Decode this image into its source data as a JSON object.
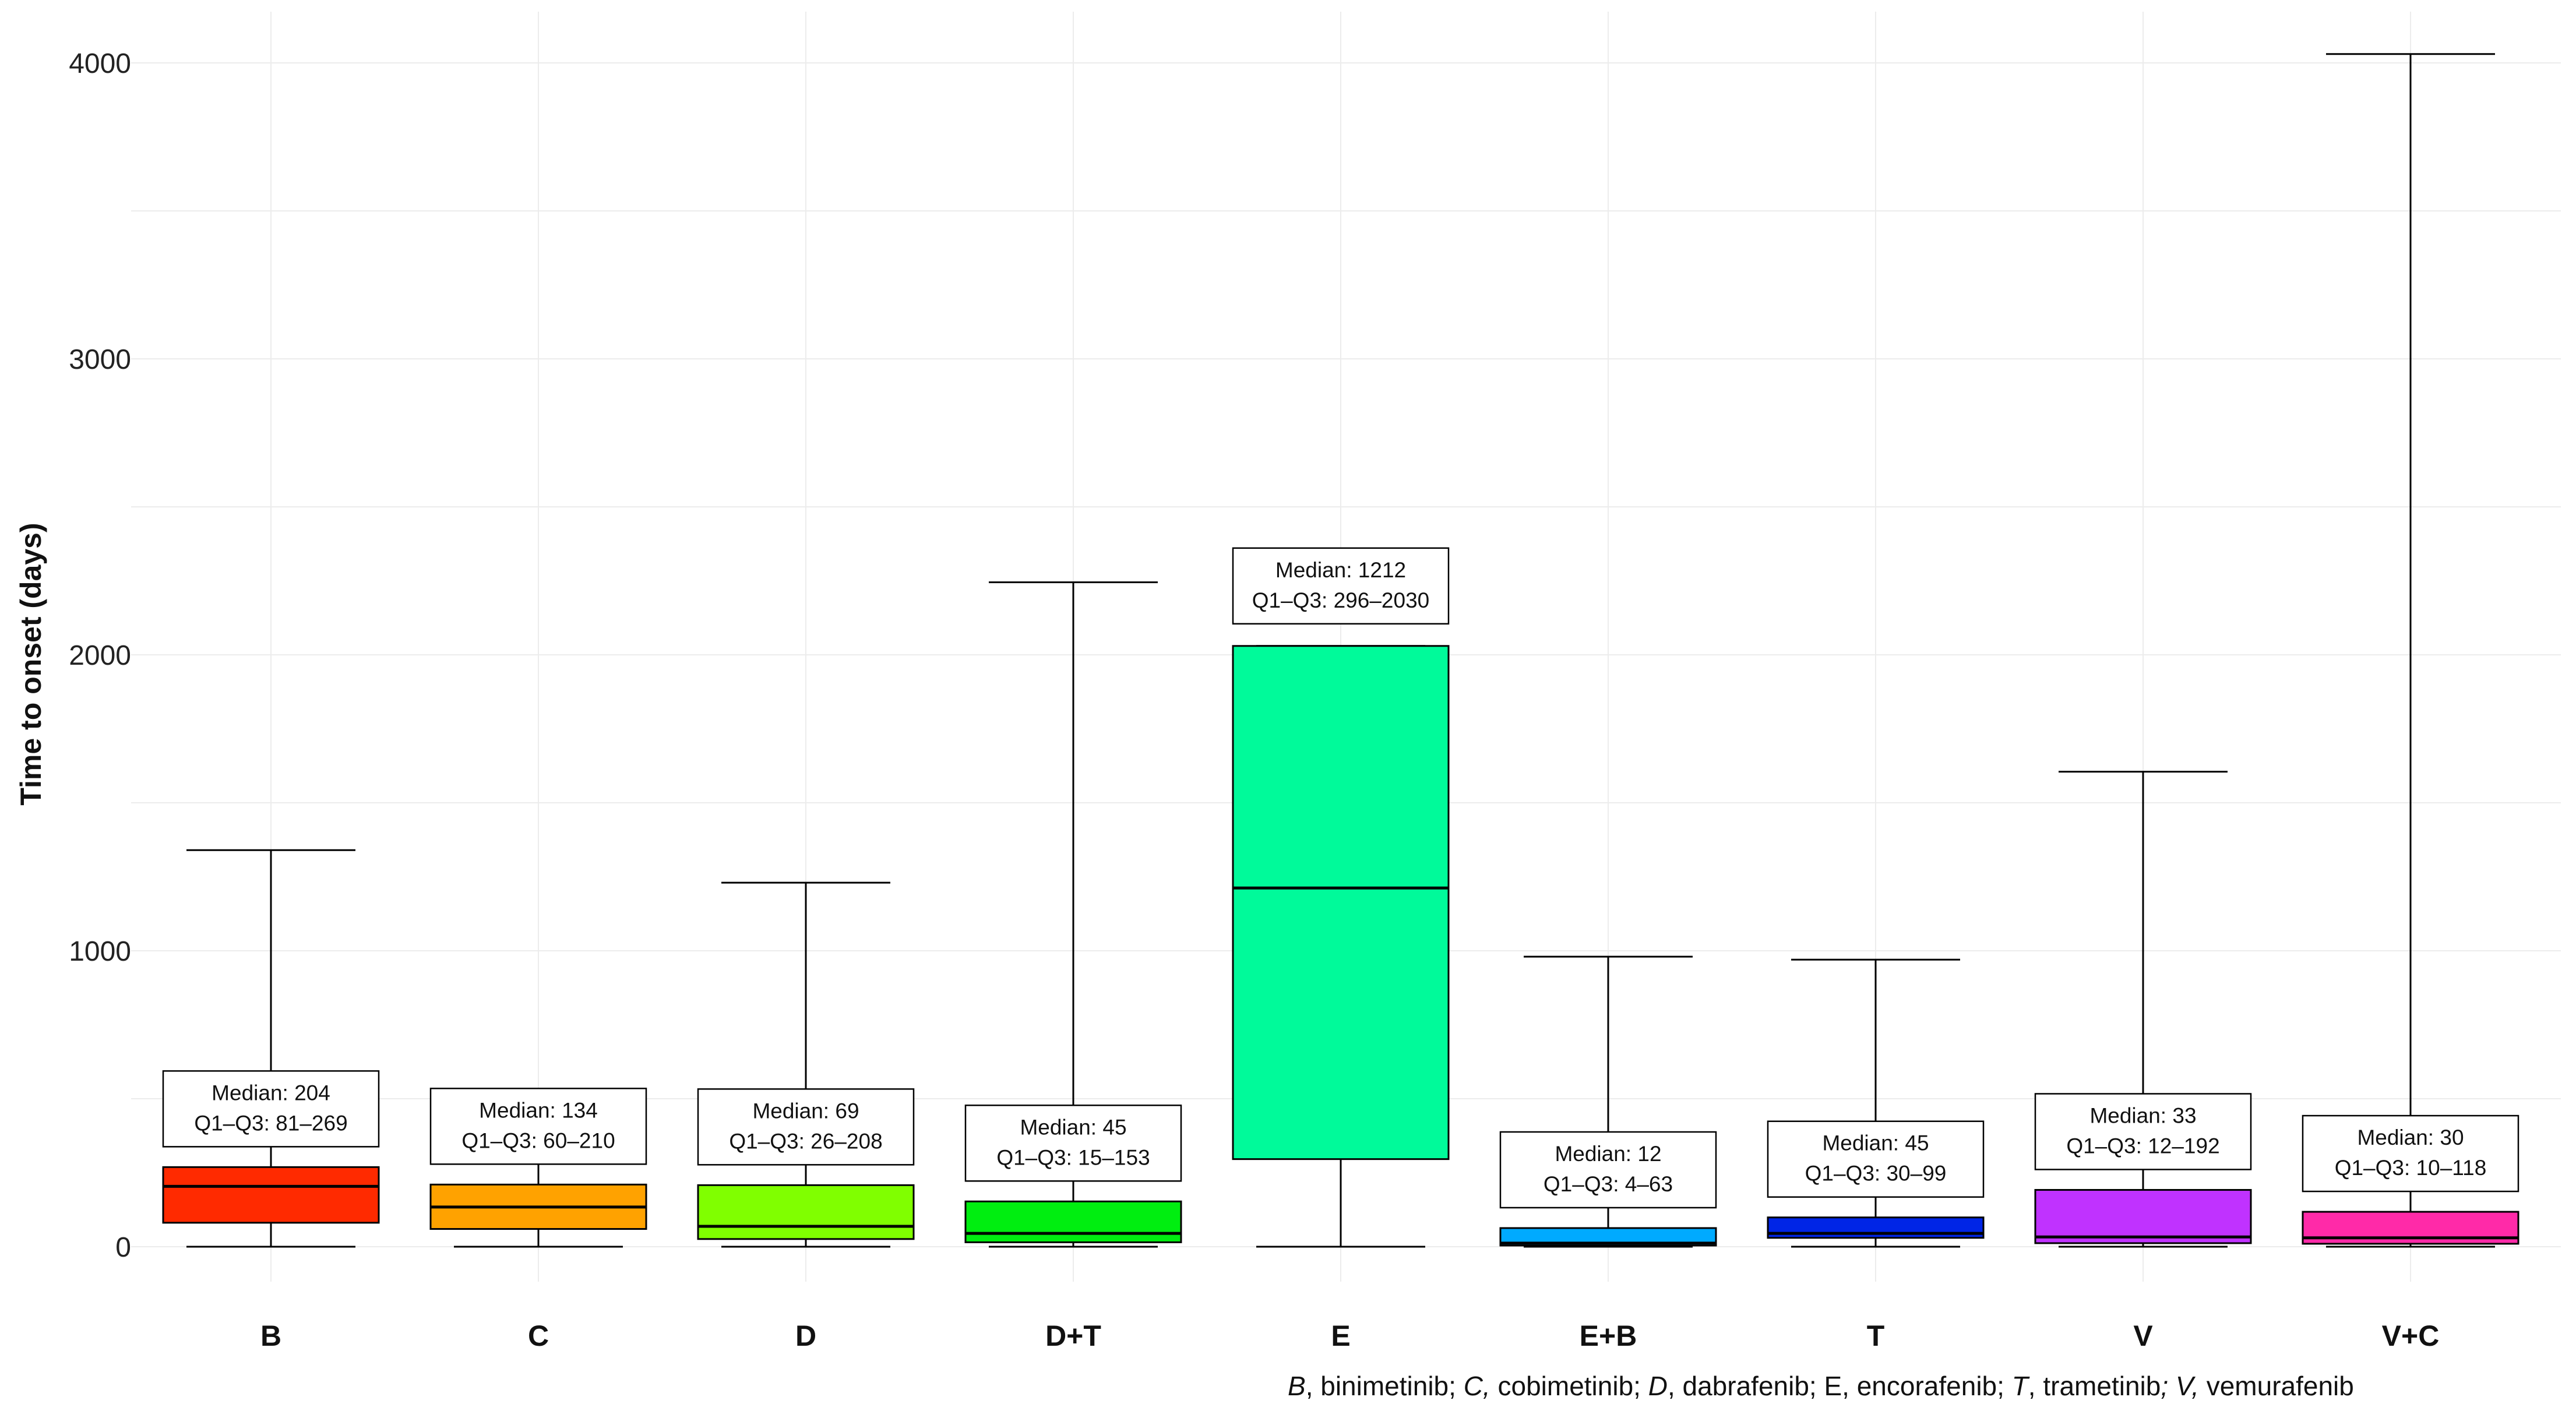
{
  "chart_data": {
    "type": "boxplot",
    "ylabel": "Time to onset (days)",
    "xlabel": "",
    "ylim": [
      -150,
      4100
    ],
    "yticks": [
      0,
      1000,
      2000,
      3000,
      4000
    ],
    "grid": true,
    "series": [
      {
        "name": "B",
        "color": "#ff2a00",
        "whisker_low": 0,
        "q1": 81,
        "median": 204,
        "q3": 269,
        "whisker_high": 1340,
        "label_line1": "Median: 204",
        "label_line2": "Q1–Q3: 81–269"
      },
      {
        "name": "C",
        "color": "#ffa200",
        "whisker_low": 0,
        "q1": 60,
        "median": 134,
        "q3": 210,
        "whisker_high": 525,
        "label_line1": "Median: 134",
        "label_line2": "Q1–Q3: 60–210"
      },
      {
        "name": "D",
        "color": "#80ff00",
        "whisker_low": 0,
        "q1": 26,
        "median": 69,
        "q3": 208,
        "whisker_high": 1230,
        "label_line1": "Median: 69",
        "label_line2": "Q1–Q3: 26–208"
      },
      {
        "name": "D+T",
        "color": "#00ee10",
        "whisker_low": 0,
        "q1": 15,
        "median": 45,
        "q3": 153,
        "whisker_high": 2245,
        "label_line1": "Median: 45",
        "label_line2": "Q1–Q3: 15–153"
      },
      {
        "name": "E",
        "color": "#00fa9a",
        "whisker_low": 0,
        "q1": 296,
        "median": 1212,
        "q3": 2030,
        "whisker_high": 2030,
        "label_line1": "Median: 1212",
        "label_line2": "Q1–Q3: 296–2030"
      },
      {
        "name": "E+B",
        "color": "#00aaff",
        "whisker_low": 0,
        "q1": 4,
        "median": 12,
        "q3": 63,
        "whisker_high": 980,
        "label_line1": "Median: 12",
        "label_line2": "Q1–Q3: 4–63"
      },
      {
        "name": "T",
        "color": "#0025e6",
        "whisker_low": 0,
        "q1": 30,
        "median": 45,
        "q3": 99,
        "whisker_high": 970,
        "label_line1": "Median: 45",
        "label_line2": "Q1–Q3: 30–99"
      },
      {
        "name": "V",
        "color": "#c032ff",
        "whisker_low": 0,
        "q1": 12,
        "median": 33,
        "q3": 192,
        "whisker_high": 1605,
        "label_line1": "Median: 33",
        "label_line2": "Q1–Q3: 12–192"
      },
      {
        "name": "V+C",
        "color": "#ff2aa8",
        "whisker_low": 0,
        "q1": 10,
        "median": 30,
        "q3": 118,
        "whisker_high": 4030,
        "label_line1": "Median: 30",
        "label_line2": "Q1–Q3: 10–118"
      }
    ]
  },
  "footnote": {
    "parts": [
      {
        "italic": true,
        "text": "B"
      },
      {
        "italic": false,
        "text": ", binimetinib; "
      },
      {
        "italic": true,
        "text": "C,"
      },
      {
        "italic": false,
        "text": " cobimetinib; "
      },
      {
        "italic": true,
        "text": "D"
      },
      {
        "italic": false,
        "text": ", dabrafenib; E, encorafenib; "
      },
      {
        "italic": true,
        "text": "T"
      },
      {
        "italic": false,
        "text": ", trametinib"
      },
      {
        "italic": true,
        "text": "; V,"
      },
      {
        "italic": false,
        "text": " vemurafenib"
      }
    ]
  }
}
